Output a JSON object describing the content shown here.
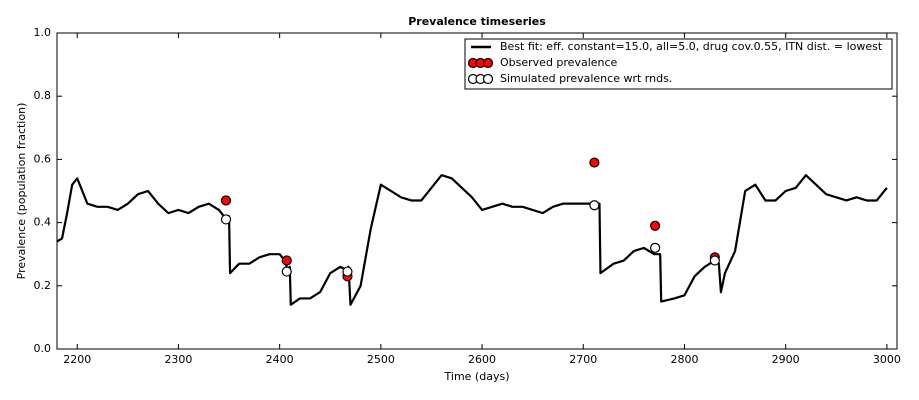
{
  "chart_data": {
    "type": "line",
    "title": "Prevalence timeseries",
    "xlabel": "Time (days)",
    "ylabel": "Prevalence (population fraction)",
    "xlim": [
      2180,
      3010
    ],
    "ylim": [
      0,
      1
    ],
    "xticks": [
      2200,
      2300,
      2400,
      2500,
      2600,
      2700,
      2800,
      2900,
      3000
    ],
    "yticks": [
      {
        "value": 0,
        "label": "0.0"
      },
      0.2,
      0.4,
      0.6,
      0.8,
      {
        "value": 1,
        "label": "1.0"
      }
    ],
    "grid": false,
    "legend": "upper right",
    "series": [
      {
        "name": "Best fit: eff. constant=15.0, all=5.0, drug cov.0.55, ITN dist. = lowest",
        "type": "line",
        "color": "#000000",
        "x": [
          2180,
          2185,
          2190,
          2195,
          2200,
          2205,
          2210,
          2220,
          2230,
          2240,
          2250,
          2260,
          2270,
          2280,
          2290,
          2300,
          2310,
          2320,
          2330,
          2340,
          2345,
          2350,
          2351,
          2360,
          2370,
          2380,
          2390,
          2400,
          2405,
          2408,
          2410,
          2411,
          2420,
          2430,
          2440,
          2450,
          2460,
          2466,
          2468,
          2470,
          2480,
          2490,
          2500,
          2510,
          2520,
          2530,
          2540,
          2550,
          2560,
          2570,
          2580,
          2590,
          2600,
          2610,
          2620,
          2630,
          2640,
          2650,
          2660,
          2670,
          2680,
          2690,
          2700,
          2710,
          2716,
          2717,
          2730,
          2740,
          2750,
          2760,
          2770,
          2776,
          2777,
          2790,
          2800,
          2810,
          2820,
          2830,
          2834,
          2836,
          2840,
          2850,
          2860,
          2870,
          2880,
          2890,
          2900,
          2910,
          2920,
          2930,
          2940,
          2950,
          2960,
          2970,
          2980,
          2990,
          3000
        ],
        "values": [
          0.34,
          0.35,
          0.43,
          0.52,
          0.54,
          0.5,
          0.46,
          0.45,
          0.45,
          0.44,
          0.46,
          0.49,
          0.5,
          0.46,
          0.43,
          0.44,
          0.43,
          0.45,
          0.46,
          0.44,
          0.42,
          0.42,
          0.24,
          0.27,
          0.27,
          0.29,
          0.3,
          0.3,
          0.28,
          0.25,
          0.26,
          0.14,
          0.16,
          0.16,
          0.18,
          0.24,
          0.26,
          0.25,
          0.26,
          0.14,
          0.2,
          0.38,
          0.52,
          0.5,
          0.48,
          0.47,
          0.47,
          0.51,
          0.55,
          0.54,
          0.51,
          0.48,
          0.44,
          0.45,
          0.46,
          0.45,
          0.45,
          0.44,
          0.43,
          0.45,
          0.46,
          0.46,
          0.46,
          0.46,
          0.46,
          0.24,
          0.27,
          0.28,
          0.31,
          0.32,
          0.3,
          0.3,
          0.15,
          0.16,
          0.17,
          0.23,
          0.26,
          0.28,
          0.27,
          0.18,
          0.24,
          0.31,
          0.5,
          0.52,
          0.47,
          0.47,
          0.5,
          0.51,
          0.55,
          0.52,
          0.49,
          0.48,
          0.47,
          0.48,
          0.47,
          0.47,
          0.51
        ]
      },
      {
        "name": "Observed prevalence",
        "type": "scatter",
        "color": "#ff0000",
        "x": [
          2347,
          2407,
          2467,
          2711,
          2771,
          2830
        ],
        "values": [
          0.47,
          0.28,
          0.23,
          0.59,
          0.39,
          0.29
        ]
      },
      {
        "name": "Simulated prevalence wrt rnds.",
        "type": "scatter",
        "color": "#ffffff",
        "x": [
          2347,
          2407,
          2467,
          2711,
          2771,
          2830
        ],
        "values": [
          0.41,
          0.245,
          0.245,
          0.455,
          0.32,
          0.28
        ]
      }
    ]
  }
}
